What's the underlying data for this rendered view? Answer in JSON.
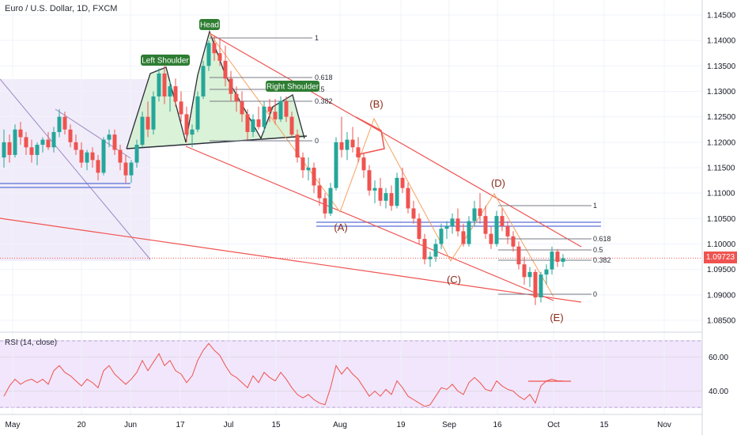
{
  "header": {
    "title": "Euro / U.S. Dollar, 1D, FXCM"
  },
  "rsi_panel": {
    "label": "RSI (14, close)"
  },
  "colors": {
    "up": "#26a69a",
    "down": "#ef5350",
    "trendline": "#ef5350",
    "rsi_line": "#ef5350",
    "rsi_fill": "#f1e6fb",
    "shoulder_fill": "#d4f0d0",
    "channel_fill": "#efeaf8",
    "price_line": "#ef5350",
    "fib": "#787b86",
    "zone": "#5b6fd6"
  },
  "current_price": "1.09723",
  "chart_data": [
    {
      "type": "candlestick",
      "title": "Euro / U.S. Dollar, 1D, FXCM",
      "y_ticks": [
        "1.14500",
        "1.14000",
        "1.13500",
        "1.13000",
        "1.12500",
        "1.12000",
        "1.11500",
        "1.11000",
        "1.10500",
        "1.10000",
        "1.09500",
        "1.09000",
        "1.08500"
      ],
      "ylim": [
        1.083,
        1.146
      ],
      "x_ticks": [
        "May",
        "20",
        "Jun",
        "17",
        "Jul",
        "15",
        "Aug",
        "19",
        "Sep",
        "16",
        "Oct",
        "15",
        "Nov"
      ],
      "annotations": [
        "Head",
        "Left Shoulder",
        "Right Shoulder",
        "(A)",
        "(B)",
        "(C)",
        "(D)",
        "(E)"
      ],
      "fib_levels_1": [
        "1",
        "0.618",
        "0.5",
        "0.382",
        "0"
      ],
      "fib_levels_2": [
        "1",
        "0.618",
        "0.5",
        "0.382",
        "0"
      ],
      "ohlc": [
        [
          1.117,
          1.1225,
          1.115,
          1.12
        ],
        [
          1.12,
          1.1215,
          1.116,
          1.1175
        ],
        [
          1.1175,
          1.1235,
          1.117,
          1.1225
        ],
        [
          1.1225,
          1.124,
          1.1195,
          1.121
        ],
        [
          1.121,
          1.122,
          1.1175,
          1.119
        ],
        [
          1.119,
          1.1205,
          1.116,
          1.1175
        ],
        [
          1.1175,
          1.12,
          1.1155,
          1.1195
        ],
        [
          1.1195,
          1.121,
          1.118,
          1.1205
        ],
        [
          1.1205,
          1.122,
          1.1185,
          1.119
        ],
        [
          1.119,
          1.123,
          1.118,
          1.122
        ],
        [
          1.122,
          1.1265,
          1.121,
          1.125
        ],
        [
          1.125,
          1.126,
          1.1215,
          1.1225
        ],
        [
          1.1225,
          1.1235,
          1.119,
          1.12
        ],
        [
          1.12,
          1.1215,
          1.1175,
          1.1185
        ],
        [
          1.1185,
          1.12,
          1.115,
          1.116
        ],
        [
          1.116,
          1.1185,
          1.1145,
          1.118
        ],
        [
          1.118,
          1.119,
          1.115,
          1.1165
        ],
        [
          1.1165,
          1.1175,
          1.1125,
          1.114
        ],
        [
          1.114,
          1.121,
          1.1135,
          1.1205
        ],
        [
          1.1205,
          1.1225,
          1.119,
          1.1215
        ],
        [
          1.1215,
          1.1225,
          1.1175,
          1.1185
        ],
        [
          1.1185,
          1.1195,
          1.1145,
          1.116
        ],
        [
          1.116,
          1.1175,
          1.112,
          1.1135
        ],
        [
          1.1135,
          1.1165,
          1.112,
          1.116
        ],
        [
          1.116,
          1.1205,
          1.115,
          1.1195
        ],
        [
          1.1195,
          1.126,
          1.119,
          1.125
        ],
        [
          1.125,
          1.128,
          1.121,
          1.1225
        ],
        [
          1.1225,
          1.13,
          1.1215,
          1.129
        ],
        [
          1.129,
          1.1345,
          1.128,
          1.1335
        ],
        [
          1.1335,
          1.135,
          1.1275,
          1.129
        ],
        [
          1.129,
          1.132,
          1.126,
          1.131
        ],
        [
          1.131,
          1.1325,
          1.127,
          1.128
        ],
        [
          1.128,
          1.13,
          1.124,
          1.1255
        ],
        [
          1.1255,
          1.127,
          1.12,
          1.1215
        ],
        [
          1.1215,
          1.1235,
          1.119,
          1.1225
        ],
        [
          1.1225,
          1.13,
          1.122,
          1.129
        ],
        [
          1.129,
          1.136,
          1.1285,
          1.135
        ],
        [
          1.135,
          1.14,
          1.134,
          1.1395
        ],
        [
          1.1395,
          1.141,
          1.136,
          1.1375
        ],
        [
          1.1375,
          1.1405,
          1.135,
          1.136
        ],
        [
          1.136,
          1.139,
          1.131,
          1.1325
        ],
        [
          1.1325,
          1.134,
          1.128,
          1.1295
        ],
        [
          1.1295,
          1.131,
          1.126,
          1.128
        ],
        [
          1.128,
          1.13,
          1.124,
          1.1255
        ],
        [
          1.1255,
          1.1265,
          1.1205,
          1.122
        ],
        [
          1.122,
          1.1255,
          1.121,
          1.1245
        ],
        [
          1.1245,
          1.127,
          1.1225,
          1.123
        ],
        [
          1.123,
          1.128,
          1.122,
          1.127
        ],
        [
          1.127,
          1.1285,
          1.124,
          1.126
        ],
        [
          1.126,
          1.1285,
          1.1235,
          1.1245
        ],
        [
          1.1245,
          1.129,
          1.124,
          1.128
        ],
        [
          1.128,
          1.129,
          1.124,
          1.125
        ],
        [
          1.125,
          1.126,
          1.121,
          1.1215
        ],
        [
          1.1215,
          1.1225,
          1.116,
          1.117
        ],
        [
          1.117,
          1.118,
          1.113,
          1.1145
        ],
        [
          1.1145,
          1.117,
          1.1125,
          1.115
        ],
        [
          1.115,
          1.116,
          1.11,
          1.1115
        ],
        [
          1.1115,
          1.113,
          1.1075,
          1.109
        ],
        [
          1.109,
          1.11,
          1.105,
          1.106
        ],
        [
          1.106,
          1.112,
          1.1055,
          1.111
        ],
        [
          1.111,
          1.121,
          1.1105,
          1.12
        ],
        [
          1.12,
          1.125,
          1.117,
          1.1185
        ],
        [
          1.1185,
          1.122,
          1.1165,
          1.1205
        ],
        [
          1.1205,
          1.123,
          1.118,
          1.119
        ],
        [
          1.119,
          1.121,
          1.116,
          1.117
        ],
        [
          1.117,
          1.118,
          1.113,
          1.1145
        ],
        [
          1.1145,
          1.1155,
          1.1095,
          1.1105
        ],
        [
          1.1105,
          1.1125,
          1.108,
          1.111
        ],
        [
          1.111,
          1.113,
          1.1075,
          1.1085
        ],
        [
          1.1085,
          1.111,
          1.107,
          1.11
        ],
        [
          1.11,
          1.1115,
          1.1065,
          1.1075
        ],
        [
          1.1075,
          1.114,
          1.107,
          1.113
        ],
        [
          1.113,
          1.115,
          1.11,
          1.111
        ],
        [
          1.111,
          1.112,
          1.106,
          1.107
        ],
        [
          1.107,
          1.1085,
          1.104,
          1.105
        ],
        [
          1.105,
          1.106,
          1.1,
          1.101
        ],
        [
          1.101,
          1.102,
          1.096,
          1.097
        ],
        [
          1.097,
          1.0985,
          1.0955,
          1.0975
        ],
        [
          1.0975,
          1.101,
          1.0965,
          1.1
        ],
        [
          1.1,
          1.104,
          1.099,
          1.103
        ],
        [
          1.103,
          1.1045,
          1.101,
          1.1035
        ],
        [
          1.1035,
          1.106,
          1.102,
          1.105
        ],
        [
          1.105,
          1.107,
          1.1015,
          1.1025
        ],
        [
          1.1025,
          1.104,
          1.0995,
          1.1
        ],
        [
          1.1,
          1.1055,
          1.0995,
          1.1045
        ],
        [
          1.1045,
          1.1085,
          1.1035,
          1.107
        ],
        [
          1.107,
          1.11,
          1.104,
          1.1055
        ],
        [
          1.1055,
          1.1075,
          1.101,
          1.102
        ],
        [
          1.102,
          1.1035,
          1.099,
          1.1
        ],
        [
          1.1,
          1.1065,
          1.0995,
          1.1055
        ],
        [
          1.1055,
          1.107,
          1.1025,
          1.1035
        ],
        [
          1.1035,
          1.1045,
          1.1,
          1.1015
        ],
        [
          1.1015,
          1.1025,
          1.0985,
          1.0995
        ],
        [
          1.0995,
          1.1005,
          1.095,
          1.096
        ],
        [
          1.096,
          1.0975,
          1.092,
          1.0935
        ],
        [
          1.0935,
          1.0955,
          1.0915,
          1.0945
        ],
        [
          1.0945,
          1.095,
          1.088,
          1.0895
        ],
        [
          1.0895,
          1.0945,
          1.0885,
          1.094
        ],
        [
          1.094,
          1.096,
          1.092,
          1.095
        ],
        [
          1.095,
          1.0995,
          1.094,
          1.0985
        ],
        [
          1.0985,
          1.099,
          1.0955,
          1.0965
        ],
        [
          1.0965,
          1.098,
          1.0955,
          1.0972
        ]
      ]
    },
    {
      "type": "line",
      "title": "RSI (14, close)",
      "y_ticks": [
        "60.00",
        "40.00"
      ],
      "ylim": [
        25,
        75
      ],
      "values": [
        37,
        43,
        47,
        44,
        46,
        47,
        45,
        47,
        44,
        52,
        55,
        51,
        49,
        46,
        43,
        47,
        45,
        42,
        52,
        55,
        50,
        47,
        44,
        47,
        51,
        58,
        52,
        57,
        62,
        55,
        58,
        52,
        50,
        45,
        49,
        58,
        64,
        68,
        64,
        61,
        55,
        50,
        48,
        45,
        42,
        49,
        45,
        51,
        48,
        46,
        51,
        47,
        42,
        38,
        36,
        38,
        35,
        33,
        32,
        42,
        55,
        50,
        54,
        50,
        47,
        42,
        37,
        40,
        37,
        41,
        38,
        46,
        42,
        37,
        35,
        33,
        31,
        32,
        37,
        42,
        41,
        44,
        40,
        38,
        45,
        48,
        45,
        41,
        40,
        46,
        43,
        41,
        40,
        37,
        35,
        38,
        33,
        43,
        46,
        47,
        46,
        46
      ]
    }
  ]
}
